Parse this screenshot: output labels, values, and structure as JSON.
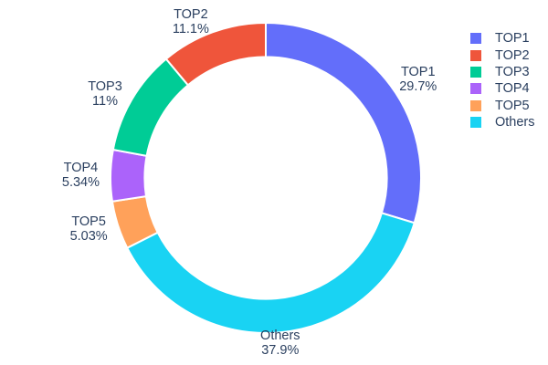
{
  "chart": {
    "background_color": "#ffffff",
    "text_color": "#2a3f5f",
    "slice_border_color": "#ffffff"
  },
  "chart_data": {
    "type": "pie",
    "title": "",
    "hole": 0.78,
    "direction": "clockwise",
    "start_angle_deg": 0,
    "legend_position": "top-right",
    "labels": [
      "TOP1",
      "TOP2",
      "TOP3",
      "TOP4",
      "TOP5",
      "Others"
    ],
    "values": [
      29.7,
      11.1,
      11,
      5.34,
      5.03,
      37.9
    ],
    "percent_labels": [
      "29.7%",
      "11.1%",
      "11%",
      "5.34%",
      "5.03%",
      "37.9%"
    ],
    "colors": [
      "#636efa",
      "#ef553b",
      "#00cc96",
      "#ab63fa",
      "#ffa15a",
      "#19d3f3"
    ],
    "clockwise_order": [
      0,
      5,
      4,
      3,
      2,
      1
    ],
    "legend_items": [
      {
        "label": "TOP1",
        "color": "#636efa"
      },
      {
        "label": "TOP2",
        "color": "#ef553b"
      },
      {
        "label": "TOP3",
        "color": "#00cc96"
      },
      {
        "label": "TOP4",
        "color": "#ab63fa"
      },
      {
        "label": "TOP5",
        "color": "#ffa15a"
      },
      {
        "label": "Others",
        "color": "#19d3f3"
      }
    ]
  }
}
